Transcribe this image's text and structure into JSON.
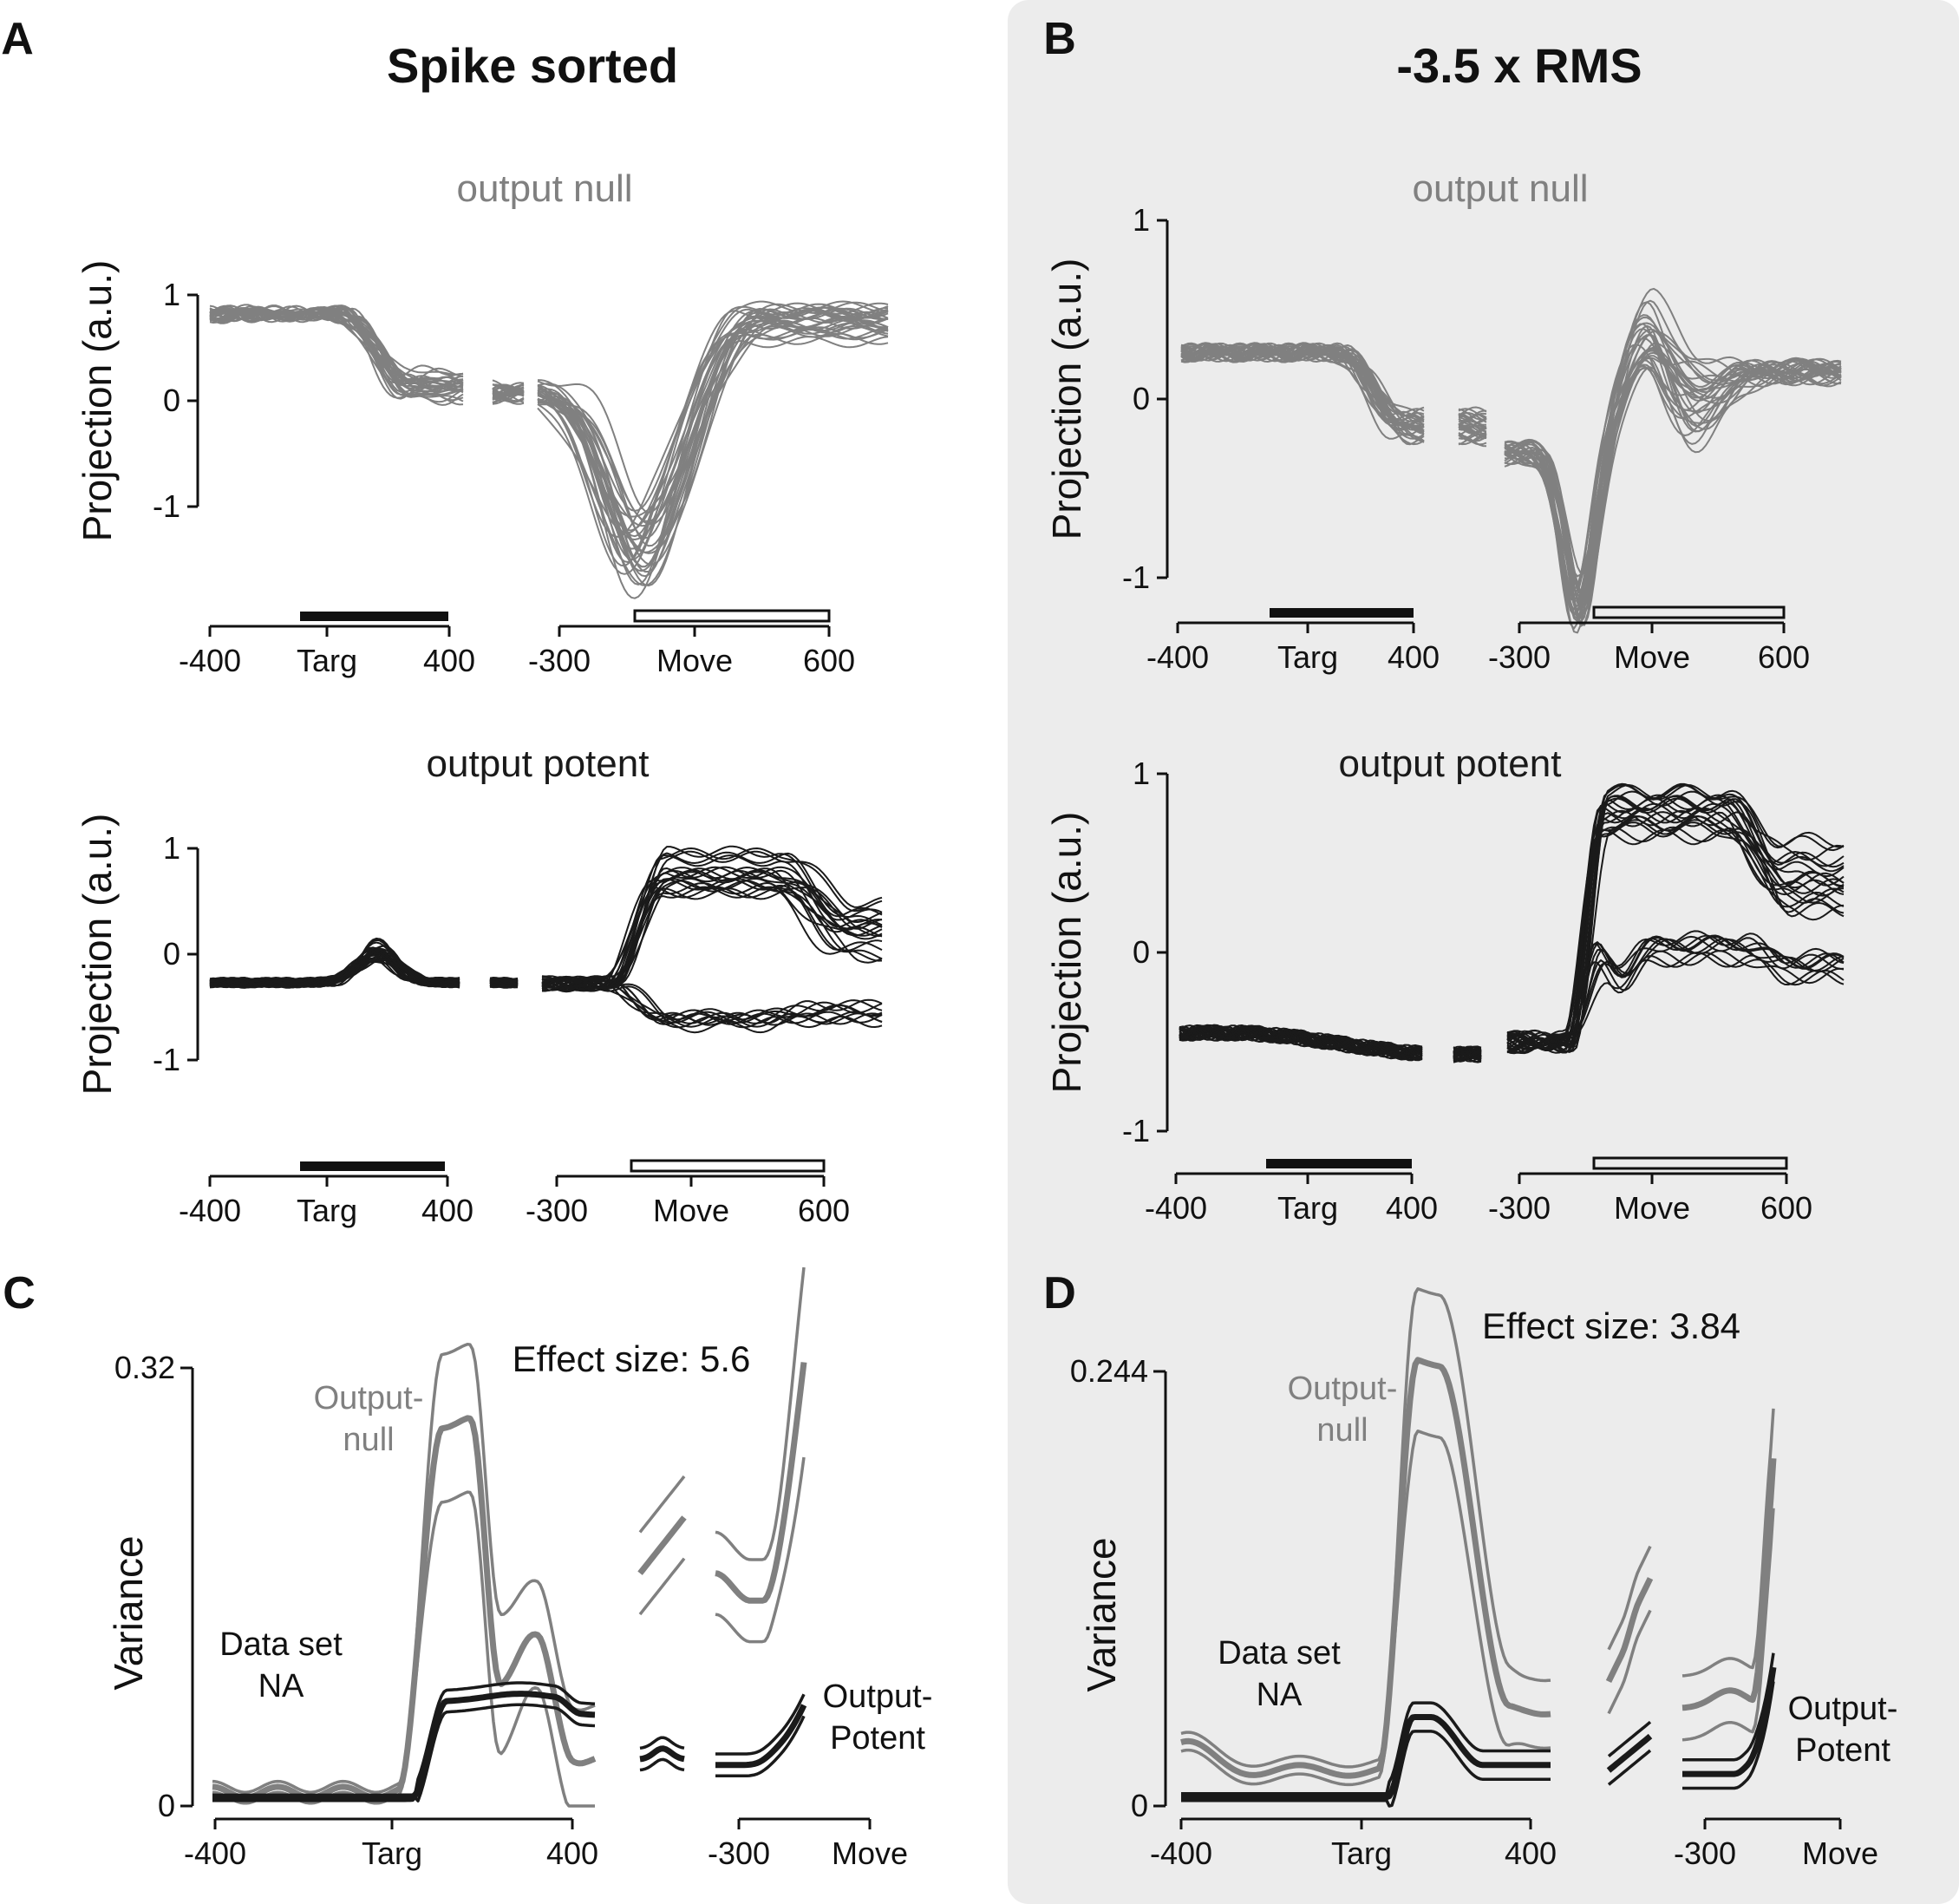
{
  "colors": {
    "null_trace": "#808080",
    "potent_trace": "#1a1a1a",
    "panel_bg": "#ececec",
    "axis": "#111111"
  },
  "panels": {
    "A": {
      "label": "A",
      "title": "Spike sorted"
    },
    "B": {
      "label": "B",
      "title": "-3.5 x RMS"
    },
    "C": {
      "label": "C"
    },
    "D": {
      "label": "D"
    }
  },
  "chart_data": [
    {
      "id": "A-null",
      "type": "line",
      "subtitle": "output null",
      "ylabel": "Projection (a.u.)",
      "yticks": [
        "1",
        "0",
        "-1"
      ],
      "ylim": [
        -1,
        1
      ],
      "segments": [
        {
          "xticks": [
            "-400",
            "400"
          ],
          "event_label": "Targ",
          "xlim": [
            -400,
            400
          ],
          "bar": "filled",
          "bar_range": [
            -100,
            400
          ]
        },
        {
          "xticks": [
            "-300",
            "600"
          ],
          "event_label": "Move",
          "xlim": [
            -300,
            600
          ],
          "bar": "open",
          "bar_range": [
            -50,
            600
          ]
        }
      ],
      "trials": 30,
      "approx_mean_pre": 0.8,
      "approx_mean_after_targ": 0.05,
      "approx_min_after_move": -1.6,
      "approx_late": 0.7
    },
    {
      "id": "A-potent",
      "type": "line",
      "subtitle": "output potent",
      "ylabel": "Projection (a.u.)",
      "yticks": [
        "1",
        "0",
        "-1"
      ],
      "ylim": [
        -1,
        1
      ],
      "segments": [
        {
          "xticks": [
            "-400",
            "400"
          ],
          "event_label": "Targ",
          "xlim": [
            -400,
            400
          ],
          "bar": "filled",
          "bar_range": [
            -100,
            400
          ]
        },
        {
          "xticks": [
            "-300",
            "600"
          ],
          "event_label": "Move",
          "xlim": [
            -300,
            600
          ],
          "bar": "open",
          "bar_range": [
            -50,
            600
          ]
        }
      ],
      "trials": 30,
      "approx_mean_pre": -0.25,
      "approx_peak_after_targ": 0.15,
      "approx_late_high": 0.95,
      "approx_late_low": -0.6
    },
    {
      "id": "B-null",
      "type": "line",
      "subtitle": "output null",
      "ylabel": "Projection (a.u.)",
      "yticks": [
        "1",
        "0",
        "-1"
      ],
      "ylim": [
        -1,
        1
      ],
      "segments": [
        {
          "xticks": [
            "-400",
            "400"
          ],
          "event_label": "Targ",
          "xlim": [
            -400,
            400
          ],
          "bar": "filled",
          "bar_range": [
            -100,
            400
          ]
        },
        {
          "xticks": [
            "-300",
            "600"
          ],
          "event_label": "Move",
          "xlim": [
            -300,
            600
          ],
          "bar": "open",
          "bar_range": [
            -50,
            600
          ]
        }
      ],
      "trials": 30,
      "approx_mean_pre": 0.25,
      "approx_min_after_move": -1.15,
      "approx_late": 0.2
    },
    {
      "id": "B-potent",
      "type": "line",
      "subtitle": "output potent",
      "ylabel": "Projection (a.u.)",
      "yticks": [
        "1",
        "0",
        "-1"
      ],
      "ylim": [
        -1,
        1
      ],
      "segments": [
        {
          "xticks": [
            "-400",
            "400"
          ],
          "event_label": "Targ",
          "xlim": [
            -400,
            400
          ],
          "bar": "filled",
          "bar_range": [
            -100,
            400
          ]
        },
        {
          "xticks": [
            "-300",
            "600"
          ],
          "event_label": "Move",
          "xlim": [
            -300,
            600
          ],
          "bar": "open",
          "bar_range": [
            -50,
            600
          ]
        }
      ],
      "trials": 30,
      "approx_mean_pre": -0.45,
      "approx_late_high": 0.9,
      "approx_late_low": 0.0
    },
    {
      "id": "C",
      "type": "line",
      "ylabel": "Variance",
      "yticks": [
        "0.32",
        "0"
      ],
      "ylim": [
        0,
        0.32
      ],
      "xticks": [
        "-400",
        "Targ",
        "400",
        "-300",
        "Move"
      ],
      "effect_size": "Effect size: 5.6",
      "annotations": {
        "dataset": [
          "Data set",
          "NA"
        ],
        "null_label": [
          "Output-",
          "null"
        ],
        "potent_label": [
          "Output-",
          "Potent"
        ]
      },
      "series": [
        {
          "name": "Output-null",
          "approx_peak": 0.26,
          "approx_band": [
            0.22,
            0.33
          ],
          "color": "#808080"
        },
        {
          "name": "Output-Potent",
          "approx_peak": 0.08,
          "approx_band": [
            0.07,
            0.09
          ],
          "color": "#1a1a1a"
        }
      ]
    },
    {
      "id": "D",
      "type": "line",
      "ylabel": "Variance",
      "yticks": [
        "0.244",
        "0"
      ],
      "ylim": [
        0,
        0.244
      ],
      "xticks": [
        "-400",
        "Targ",
        "400",
        "-300",
        "Move"
      ],
      "effect_size": "Effect size: 3.84",
      "annotations": {
        "dataset": [
          "Data set",
          "NA"
        ],
        "null_label": [
          "Output-",
          "null"
        ],
        "potent_label": [
          "Output-",
          "Potent"
        ]
      },
      "series": [
        {
          "name": "Output-null",
          "approx_peak": 0.245,
          "approx_band": [
            0.19,
            0.29
          ],
          "color": "#808080"
        },
        {
          "name": "Output-Potent",
          "approx_peak": 0.05,
          "approx_band": [
            0.04,
            0.06
          ],
          "color": "#1a1a1a"
        }
      ]
    }
  ]
}
